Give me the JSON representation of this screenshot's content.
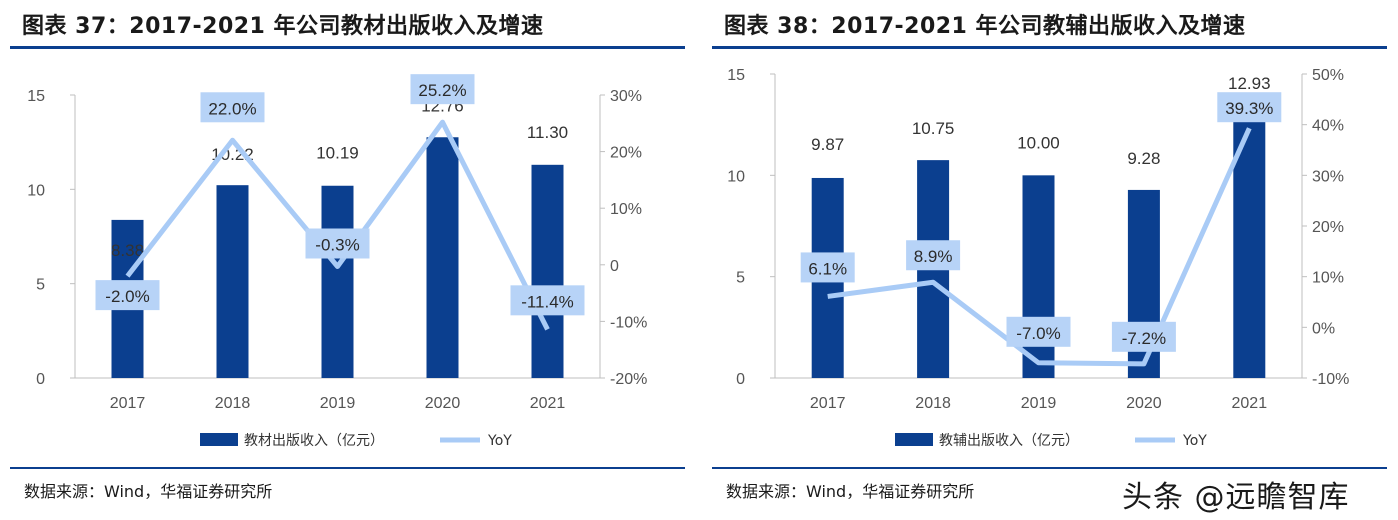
{
  "colors": {
    "bar": "#0b3f8f",
    "yoy_line": "#a9cbf6",
    "yoy_label_bg": "#b7d3f7",
    "rule": "#0b3f8f"
  },
  "watermark": "头条 @远瞻智库",
  "panels": [
    {
      "title": "图表 37：2017-2021 年公司教材出版收入及增速",
      "source": "数据来源：Wind，华福证券研究所",
      "chart_data": {
        "type": "bar",
        "categories": [
          "2017",
          "2018",
          "2019",
          "2020",
          "2021"
        ],
        "series": [
          {
            "name": "教材出版收入（亿元）",
            "type": "bar",
            "axis": "left",
            "values": [
              8.38,
              10.22,
              10.19,
              12.76,
              11.3
            ],
            "labels": [
              "8.38",
              "10.22",
              "10.19",
              "12.76",
              "11.30"
            ]
          },
          {
            "name": "YoY",
            "type": "line",
            "axis": "right",
            "values": [
              -2.0,
              22.0,
              -0.3,
              25.2,
              -11.4
            ],
            "labels": [
              "-2.0%",
              "22.0%",
              "-0.3%",
              "25.2%",
              "-11.4%"
            ]
          }
        ],
        "y_left": {
          "min": 0,
          "max": 15,
          "ticks": [
            "0",
            "5",
            "10",
            "15"
          ]
        },
        "y_right": {
          "min": -20,
          "max": 30,
          "ticks": [
            "-20%",
            "-10%",
            "0",
            "10%",
            "20%",
            "30%"
          ]
        },
        "legend": {
          "position": "bottom",
          "items": [
            "教材出版收入（亿元）",
            "YoY"
          ]
        },
        "grid": false
      }
    },
    {
      "title": "图表 38：2017-2021 年公司教辅出版收入及增速",
      "source": "数据来源：Wind，华福证券研究所",
      "chart_data": {
        "type": "bar",
        "categories": [
          "2017",
          "2018",
          "2019",
          "2020",
          "2021"
        ],
        "series": [
          {
            "name": "教辅出版收入（亿元）",
            "type": "bar",
            "axis": "left",
            "values": [
              9.87,
              10.75,
              10.0,
              9.28,
              12.93
            ],
            "labels": [
              "9.87",
              "10.75",
              "10.00",
              "9.28",
              "12.93"
            ]
          },
          {
            "name": "YoY",
            "type": "line",
            "axis": "right",
            "values": [
              6.1,
              8.9,
              -7.0,
              -7.2,
              39.3
            ],
            "labels": [
              "6.1%",
              "8.9%",
              "-7.0%",
              "-7.2%",
              "39.3%"
            ]
          }
        ],
        "y_left": {
          "min": 0,
          "max": 15,
          "ticks": [
            "0",
            "5",
            "10",
            "15"
          ]
        },
        "y_right": {
          "min": -10,
          "max": 50,
          "ticks": [
            "-10%",
            "0%",
            "10%",
            "20%",
            "30%",
            "40%",
            "50%"
          ]
        },
        "legend": {
          "position": "bottom",
          "items": [
            "教辅出版收入（亿元）",
            "YoY"
          ]
        },
        "grid": false
      }
    }
  ]
}
